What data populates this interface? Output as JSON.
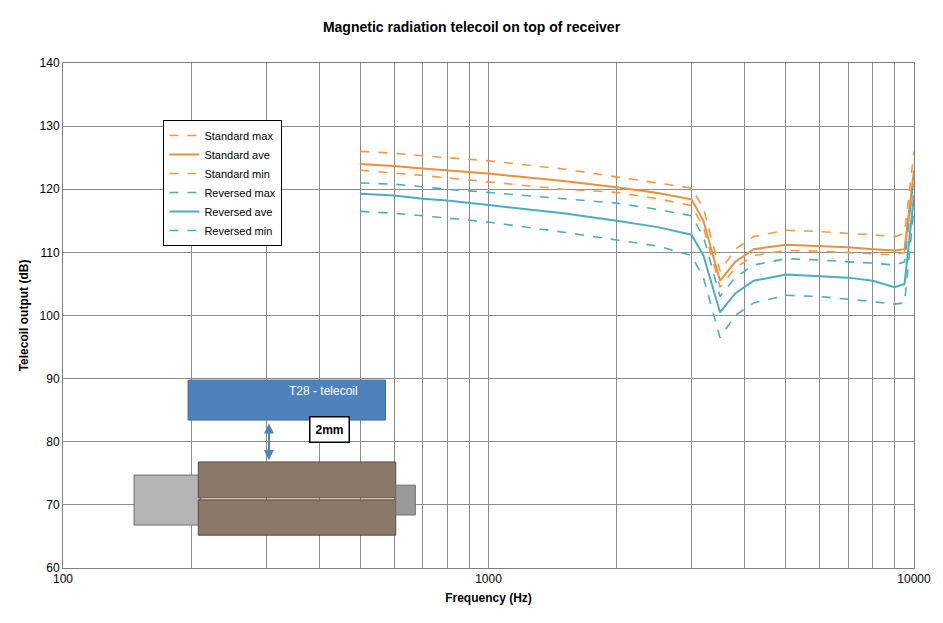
{
  "chart_data": {
    "type": "line",
    "title": "Magnetic radiation telecoil on top of receiver",
    "x_label": "Frequency (Hz)",
    "y_label": "Telecoil output (dB)",
    "log": "x",
    "grid": true,
    "legend": "upper left",
    "xlim": [
      100,
      10000
    ],
    "xticks": [
      100,
      1000,
      10000
    ],
    "ylim": [
      60,
      140
    ],
    "yticks": [
      60,
      70,
      80,
      90,
      100,
      110,
      120,
      130,
      140
    ],
    "x": [
      500,
      600,
      700,
      800,
      1000,
      1500,
      2000,
      2500,
      3000,
      3200,
      3500,
      3800,
      4200,
      5000,
      6000,
      7000,
      8000,
      9000,
      9500,
      10000
    ],
    "series": [
      {
        "name": "Standard max",
        "color": "#f79646",
        "line_style": "dashed",
        "values": [
          126,
          125.7,
          125.3,
          125,
          124.5,
          123.2,
          122,
          121,
          120.2,
          117,
          107,
          110.5,
          112.5,
          113.5,
          113.3,
          113,
          112.8,
          112.5,
          113,
          126
        ]
      },
      {
        "name": "Standard ave",
        "color": "#e8913c",
        "line_style": "solid",
        "values": [
          124,
          123.7,
          123.3,
          123,
          122.5,
          121.3,
          120.3,
          119.4,
          118.4,
          115,
          105.5,
          108.5,
          110.5,
          111.2,
          111,
          110.8,
          110.5,
          110.3,
          110.5,
          123
        ]
      },
      {
        "name": "Standard min",
        "color": "#f79646",
        "line_style": "dashed",
        "values": [
          123,
          122.6,
          122.2,
          121.8,
          121.2,
          120,
          119.5,
          118.5,
          117.4,
          114,
          104.5,
          107.5,
          109.5,
          110.3,
          110.2,
          110,
          109.8,
          109.6,
          110,
          121
        ]
      },
      {
        "name": "Reversed max",
        "color": "#4bacc6",
        "line_style": "dashed",
        "values": [
          121,
          120.8,
          120.4,
          120,
          119.5,
          118.5,
          117.8,
          116.8,
          115.8,
          112.5,
          103,
          106,
          108,
          109,
          108.8,
          108.5,
          108.3,
          108,
          108.5,
          122
        ]
      },
      {
        "name": "Reversed ave",
        "color": "#4bacc6",
        "line_style": "solid",
        "values": [
          119.3,
          119,
          118.5,
          118.2,
          117.5,
          116.2,
          115,
          114,
          112.8,
          109.5,
          100.5,
          103.5,
          105.5,
          106.5,
          106.2,
          106,
          105.5,
          104.5,
          105,
          119
        ]
      },
      {
        "name": "Reversed min",
        "color": "#4bacc6",
        "line_style": "dashed",
        "values": [
          116.5,
          116.2,
          115.8,
          115.4,
          114.8,
          113.2,
          112,
          111,
          109.5,
          106,
          96.5,
          100,
          102,
          103.2,
          103,
          102.6,
          102.2,
          101.8,
          102,
          117
        ]
      }
    ],
    "annotations": [
      {
        "text": "T28 - telecoil"
      },
      {
        "text": "2mm"
      }
    ]
  }
}
